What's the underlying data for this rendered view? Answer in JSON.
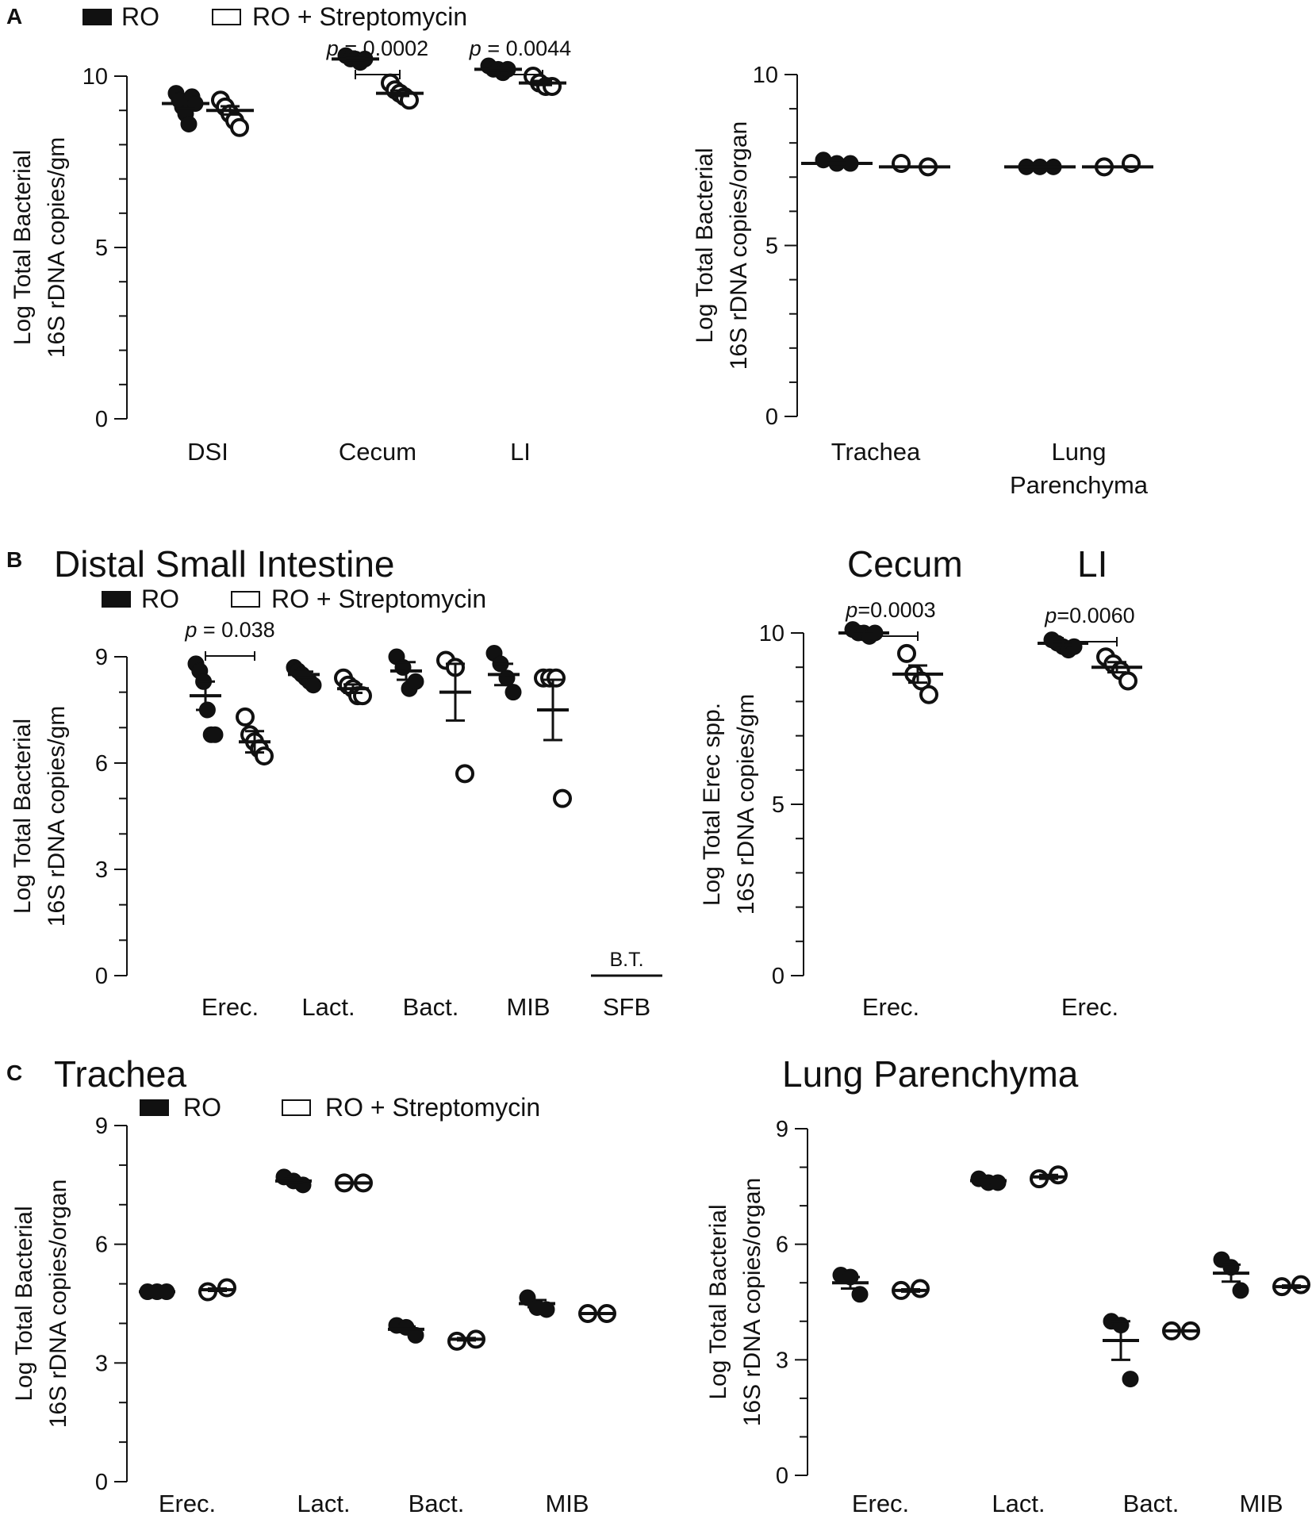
{
  "figure": {
    "panel_labels": [
      "A",
      "B",
      "C"
    ],
    "legend": {
      "filled": "RO",
      "open": "RO + Streptomycin"
    },
    "colors": {
      "ink": "#111111",
      "background": "#ffffff"
    }
  },
  "chart_data": [
    {
      "id": "A-gut",
      "type": "scatter",
      "title": "",
      "ylabel": [
        "Log Total Bacterial",
        "16S rDNA copies/gm"
      ],
      "ylim": [
        0,
        10
      ],
      "yticks": [
        0,
        5,
        10
      ],
      "minor_tick_step": 1,
      "categories": [
        "DSI",
        "Cecum",
        "LI"
      ],
      "groups": [
        {
          "category": "DSI",
          "series": "RO",
          "points": [
            9.5,
            9.3,
            9.1,
            8.9,
            8.6,
            9.4,
            9.2
          ],
          "mean": 9.2,
          "sem": 0.14
        },
        {
          "category": "DSI",
          "series": "RO + Streptomycin",
          "points": [
            9.3,
            9.1,
            8.9,
            8.7,
            8.5
          ],
          "mean": 9.0,
          "sem": 0.12
        },
        {
          "category": "Cecum",
          "series": "RO",
          "points": [
            10.6,
            10.5,
            10.5,
            10.4,
            10.5
          ],
          "mean": 10.5,
          "sem": 0.03
        },
        {
          "category": "Cecum",
          "series": "RO + Streptomycin",
          "points": [
            9.8,
            9.6,
            9.5,
            9.4,
            9.3
          ],
          "mean": 9.5,
          "sem": 0.08
        },
        {
          "category": "LI",
          "series": "RO",
          "points": [
            10.3,
            10.2,
            10.2,
            10.1,
            10.2
          ],
          "mean": 10.2,
          "sem": 0.03
        },
        {
          "category": "LI",
          "series": "RO + Streptomycin",
          "points": [
            10.0,
            9.8,
            9.7,
            9.7
          ],
          "mean": 9.8,
          "sem": 0.06
        }
      ],
      "annotations": [
        {
          "category": "Cecum",
          "text_italic": "p",
          "text_rest": " = 0.0002"
        },
        {
          "category": "LI",
          "text_italic": "p",
          "text_rest": " = 0.0044"
        }
      ]
    },
    {
      "id": "A-resp",
      "type": "scatter",
      "title": "",
      "ylabel": [
        "Log Total Bacterial",
        "16S rDNA copies/organ"
      ],
      "ylim": [
        0,
        10
      ],
      "yticks": [
        0,
        5,
        10
      ],
      "minor_tick_step": 1,
      "categories": [
        "Trachea",
        "Lung Parenchyma"
      ],
      "category_lines": [
        [
          "Trachea"
        ],
        [
          "Lung",
          "Parenchyma"
        ]
      ],
      "groups": [
        {
          "category": "Trachea",
          "series": "RO",
          "points": [
            7.5,
            7.4,
            7.4
          ],
          "mean": 7.4,
          "sem": 0.03
        },
        {
          "category": "Trachea",
          "series": "RO + Streptomycin",
          "points": [
            7.4,
            7.3
          ],
          "mean": 7.3,
          "sem": 0.02
        },
        {
          "category": "Lung Parenchyma",
          "series": "RO",
          "points": [
            7.3,
            7.3,
            7.3
          ],
          "mean": 7.3,
          "sem": 0.02
        },
        {
          "category": "Lung Parenchyma",
          "series": "RO + Streptomycin",
          "points": [
            7.3,
            7.4
          ],
          "mean": 7.3,
          "sem": 0.02
        }
      ],
      "annotations": []
    },
    {
      "id": "B-dsi",
      "type": "scatter",
      "title": "Distal Small Intestine",
      "ylabel": [
        "Log Total Bacterial",
        "16S rDNA copies/gm"
      ],
      "ylim": [
        0,
        9
      ],
      "yticks": [
        0,
        3,
        6,
        9
      ],
      "minor_tick_step": 1,
      "categories": [
        "Erec.",
        "Lact.",
        "Bact.",
        "MIB",
        "SFB"
      ],
      "groups": [
        {
          "category": "Erec.",
          "series": "RO",
          "points": [
            8.8,
            8.6,
            8.3,
            7.5,
            6.8,
            6.8
          ],
          "mean": 7.9,
          "sem": 0.4
        },
        {
          "category": "Erec.",
          "series": "RO + Streptomycin",
          "points": [
            7.3,
            6.8,
            6.6,
            6.4,
            6.2
          ],
          "mean": 6.6,
          "sem": 0.3
        },
        {
          "category": "Lact.",
          "series": "RO",
          "points": [
            8.7,
            8.6,
            8.5,
            8.4,
            8.3,
            8.2
          ],
          "mean": 8.5,
          "sem": 0.08
        },
        {
          "category": "Lact.",
          "series": "RO + Streptomycin",
          "points": [
            8.4,
            8.2,
            8.1,
            7.9,
            7.9
          ],
          "mean": 8.1,
          "sem": 0.12
        },
        {
          "category": "Bact.",
          "series": "RO",
          "points": [
            9.0,
            8.7,
            8.1,
            8.3
          ],
          "mean": 8.6,
          "sem": 0.25
        },
        {
          "category": "Bact.",
          "series": "RO + Streptomycin",
          "points": [
            8.9,
            8.7,
            5.7
          ],
          "mean": 8.0,
          "sem": 0.8
        },
        {
          "category": "MIB",
          "series": "RO",
          "points": [
            9.1,
            8.8,
            8.4,
            8.0
          ],
          "mean": 8.5,
          "sem": 0.3
        },
        {
          "category": "MIB",
          "series": "RO + Streptomycin",
          "points": [
            8.4,
            8.4,
            8.4,
            5.0
          ],
          "mean": 7.5,
          "sem": 0.85
        }
      ],
      "baselines": [
        {
          "category": "SFB",
          "label": "B.T."
        }
      ],
      "annotations": [
        {
          "category": "Erec.",
          "text_italic": "p",
          "text_rest": " = 0.038"
        }
      ]
    },
    {
      "id": "B-erec",
      "type": "scatter",
      "titles": [
        "Cecum",
        "LI"
      ],
      "ylabel": [
        "Log Total Erec spp.",
        "16S rDNA copies/gm"
      ],
      "ylim": [
        0,
        10
      ],
      "yticks": [
        0,
        5,
        10
      ],
      "minor_tick_step": 1,
      "categories": [
        "Erec.",
        "Erec."
      ],
      "groups": [
        {
          "category_index": 0,
          "series": "RO",
          "points": [
            10.1,
            10.0,
            10.0,
            9.9,
            10.0
          ],
          "mean": 10.0,
          "sem": 0.03
        },
        {
          "category_index": 0,
          "series": "RO + Streptomycin",
          "points": [
            9.4,
            8.8,
            8.6,
            8.2
          ],
          "mean": 8.8,
          "sem": 0.25
        },
        {
          "category_index": 1,
          "series": "RO",
          "points": [
            9.8,
            9.7,
            9.6,
            9.5,
            9.6
          ],
          "mean": 9.7,
          "sem": 0.05
        },
        {
          "category_index": 1,
          "series": "RO + Streptomycin",
          "points": [
            9.3,
            9.1,
            8.9,
            8.6
          ],
          "mean": 9.0,
          "sem": 0.15
        }
      ],
      "annotations": [
        {
          "category_index": 0,
          "text_italic": "p",
          "text_rest": "=0.0003"
        },
        {
          "category_index": 1,
          "text_italic": "p",
          "text_rest": "=0.0060"
        }
      ]
    },
    {
      "id": "C-trachea",
      "type": "scatter",
      "title": "Trachea",
      "ylabel": [
        "Log Total Bacterial",
        "16S rDNA copies/organ"
      ],
      "ylim": [
        0,
        9
      ],
      "yticks": [
        0,
        3,
        6,
        9
      ],
      "minor_tick_step": 1,
      "categories": [
        "Erec.",
        "Lact.",
        "Bact.",
        "MIB"
      ],
      "groups": [
        {
          "category": "Erec.",
          "series": "RO",
          "points": [
            4.8,
            4.8,
            4.8
          ],
          "mean": 4.8,
          "sem": 0.01
        },
        {
          "category": "Erec.",
          "series": "RO + Streptomycin",
          "points": [
            4.8,
            4.9
          ],
          "mean": 4.85,
          "sem": 0.03
        },
        {
          "category": "Lact.",
          "series": "RO",
          "points": [
            7.7,
            7.6,
            7.5
          ],
          "mean": 7.6,
          "sem": 0.05
        },
        {
          "category": "Lact.",
          "series": "RO + Streptomycin",
          "points": [
            7.55,
            7.55
          ],
          "mean": 7.55,
          "sem": 0.01
        },
        {
          "category": "Bact.",
          "series": "RO",
          "points": [
            3.95,
            3.9,
            3.7
          ],
          "mean": 3.85,
          "sem": 0.07
        },
        {
          "category": "Bact.",
          "series": "RO + Streptomycin",
          "points": [
            3.55,
            3.6
          ],
          "mean": 3.6,
          "sem": 0.03
        },
        {
          "category": "MIB",
          "series": "RO",
          "points": [
            4.65,
            4.4,
            4.35
          ],
          "mean": 4.5,
          "sem": 0.09
        },
        {
          "category": "MIB",
          "series": "RO + Streptomycin",
          "points": [
            4.25,
            4.25
          ],
          "mean": 4.25,
          "sem": 0.01
        }
      ],
      "annotations": []
    },
    {
      "id": "C-lung",
      "type": "scatter",
      "title": "Lung Parenchyma",
      "ylabel": [
        "Log Total Bacterial",
        "16S rDNA copies/organ"
      ],
      "ylim": [
        0,
        9
      ],
      "yticks": [
        0,
        3,
        6,
        9
      ],
      "minor_tick_step": 1,
      "categories": [
        "Erec.",
        "Lact.",
        "Bact.",
        "MIB"
      ],
      "groups": [
        {
          "category": "Erec.",
          "series": "RO",
          "points": [
            5.2,
            5.15,
            4.7
          ],
          "mean": 5.0,
          "sem": 0.15
        },
        {
          "category": "Erec.",
          "series": "RO + Streptomycin",
          "points": [
            4.8,
            4.85
          ],
          "mean": 4.8,
          "sem": 0.03
        },
        {
          "category": "Lact.",
          "series": "RO",
          "points": [
            7.7,
            7.6,
            7.6
          ],
          "mean": 7.65,
          "sem": 0.03
        },
        {
          "category": "Lact.",
          "series": "RO + Streptomycin",
          "points": [
            7.7,
            7.8
          ],
          "mean": 7.75,
          "sem": 0.05
        },
        {
          "category": "Bact.",
          "series": "RO",
          "points": [
            4.0,
            3.9,
            2.5
          ],
          "mean": 3.5,
          "sem": 0.5
        },
        {
          "category": "Bact.",
          "series": "RO + Streptomycin",
          "points": [
            3.75,
            3.75
          ],
          "mean": 3.75,
          "sem": 0.01
        },
        {
          "category": "MIB",
          "series": "RO",
          "points": [
            5.6,
            5.4,
            4.8
          ],
          "mean": 5.25,
          "sem": 0.22
        },
        {
          "category": "MIB",
          "series": "RO + Streptomycin",
          "points": [
            4.9,
            4.95
          ],
          "mean": 4.9,
          "sem": 0.03
        }
      ],
      "annotations": []
    }
  ]
}
